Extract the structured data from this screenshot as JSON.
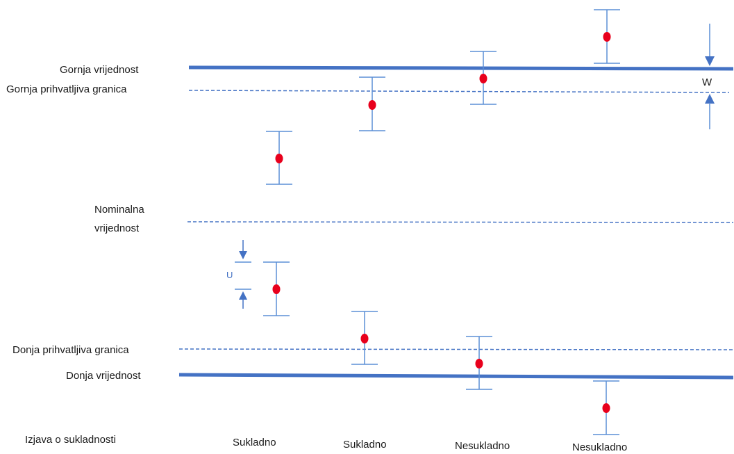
{
  "labels": {
    "upper_limit": "Gornja vrijednost",
    "upper_acceptance": "Gornja prihvatljiva granica",
    "nominal_line1": "Nominalna",
    "nominal_line2": "vrijednost",
    "lower_acceptance": "Donja prihvatljiva granica",
    "lower_limit": "Donja vrijednost",
    "conformity_header": "Izjava o sukladnosti",
    "guard_band": "W",
    "uncertainty": "U"
  },
  "verdicts": [
    "Sukladno",
    "Sukladno",
    "Nesukladno",
    "Nesukladno"
  ],
  "colors": {
    "line": "#4472c4",
    "whisker": "#5b8fd6",
    "point": "#e8001c",
    "text": "#1a1a1a",
    "uncertainty_text": "#4472c4"
  },
  "icons": {
    "down_arrow": "arrow-down-icon",
    "up_arrow": "arrow-up-icon"
  }
}
